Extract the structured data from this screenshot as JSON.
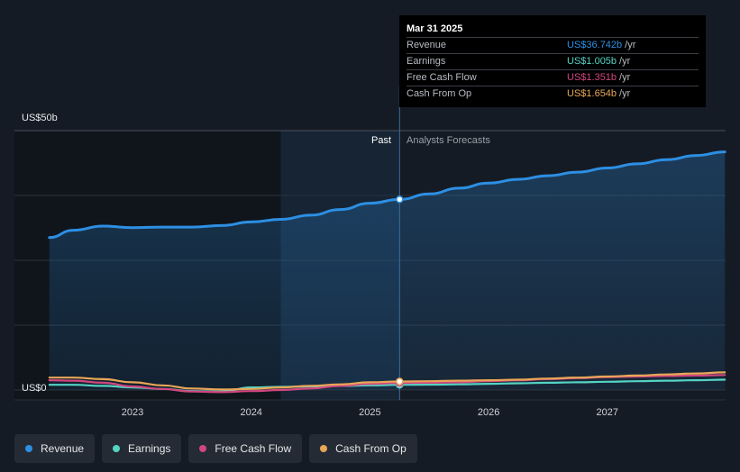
{
  "chart_data": {
    "type": "line",
    "x_labels": [
      "2023",
      "2024",
      "2025",
      "2026",
      "2027"
    ],
    "y_labels": [
      "US$50b",
      "US$0"
    ],
    "ylim": [
      0,
      50
    ],
    "past_label": "Past",
    "forecast_label": "Analysts Forecasts",
    "series": [
      {
        "name": "Revenue",
        "color": "#2d8fe3",
        "x": [
          2022.3,
          2022.5,
          2022.75,
          2023.0,
          2023.25,
          2023.5,
          2023.75,
          2024.0,
          2024.25,
          2024.5,
          2024.75,
          2025.0,
          2025.25,
          2025.5,
          2025.75,
          2026.0,
          2026.25,
          2026.5,
          2026.75,
          2027.0,
          2027.25,
          2027.5,
          2027.75,
          2027.99
        ],
        "values": [
          29.4,
          30.8,
          31.6,
          31.3,
          31.4,
          31.4,
          31.7,
          32.4,
          32.9,
          33.7,
          34.8,
          36.0,
          36.742,
          37.8,
          38.9,
          39.9,
          40.6,
          41.3,
          42.0,
          42.8,
          43.6,
          44.4,
          45.2,
          45.9
        ]
      },
      {
        "name": "Earnings",
        "color": "#55d3c3",
        "x": [
          2022.3,
          2022.5,
          2022.75,
          2023.0,
          2023.25,
          2023.5,
          2023.75,
          2024.0,
          2024.25,
          2024.5,
          2024.75,
          2025.0,
          2025.25,
          2025.5,
          2025.75,
          2026.0,
          2026.25,
          2026.5,
          2026.75,
          2027.0,
          2027.25,
          2027.5,
          2027.75,
          2027.99
        ],
        "values": [
          1.0,
          1.0,
          0.8,
          0.5,
          0.2,
          -0.2,
          -0.3,
          0.5,
          0.6,
          0.7,
          0.8,
          0.9,
          1.005,
          1.05,
          1.1,
          1.2,
          1.3,
          1.4,
          1.5,
          1.6,
          1.7,
          1.8,
          1.9,
          2.0
        ]
      },
      {
        "name": "Free Cash Flow",
        "color": "#d1467f",
        "x": [
          2022.3,
          2022.5,
          2022.75,
          2023.0,
          2023.25,
          2023.5,
          2023.75,
          2024.0,
          2024.25,
          2024.5,
          2024.75,
          2025.0,
          2025.25,
          2025.5,
          2025.75,
          2026.0,
          2026.25,
          2026.5,
          2026.75,
          2027.0,
          2027.25,
          2027.5,
          2027.75,
          2027.99
        ],
        "values": [
          1.9,
          1.8,
          1.4,
          0.7,
          0.2,
          -0.3,
          -0.4,
          -0.2,
          0.0,
          0.3,
          0.8,
          1.2,
          1.351,
          1.4,
          1.5,
          1.7,
          1.9,
          2.1,
          2.3,
          2.5,
          2.6,
          2.7,
          2.8,
          2.9
        ]
      },
      {
        "name": "Cash From Op",
        "color": "#e8a657",
        "x": [
          2022.3,
          2022.5,
          2022.75,
          2023.0,
          2023.25,
          2023.5,
          2023.75,
          2024.0,
          2024.25,
          2024.5,
          2024.75,
          2025.0,
          2025.25,
          2025.5,
          2025.75,
          2026.0,
          2026.25,
          2026.5,
          2026.75,
          2027.0,
          2027.25,
          2027.5,
          2027.75,
          2027.99
        ],
        "values": [
          2.4,
          2.4,
          2.1,
          1.5,
          0.9,
          0.3,
          0.1,
          0.2,
          0.5,
          0.8,
          1.1,
          1.5,
          1.654,
          1.7,
          1.8,
          1.9,
          2.0,
          2.2,
          2.4,
          2.6,
          2.8,
          3.0,
          3.2,
          3.4
        ]
      }
    ],
    "past_end_x": 2025.25,
    "shade_start_x": 2024.25,
    "grid": true
  },
  "tooltip": {
    "date": "Mar 31 2025",
    "rows": [
      {
        "label": "Revenue",
        "value": "US$36.742b",
        "unit": "/yr",
        "color": "#2d8fe3"
      },
      {
        "label": "Earnings",
        "value": "US$1.005b",
        "unit": "/yr",
        "color": "#55d3c3"
      },
      {
        "label": "Free Cash Flow",
        "value": "US$1.351b",
        "unit": "/yr",
        "color": "#d1467f"
      },
      {
        "label": "Cash From Op",
        "value": "US$1.654b",
        "unit": "/yr",
        "color": "#e8a657"
      }
    ]
  },
  "legend": [
    {
      "label": "Revenue",
      "color": "#2d8fe3"
    },
    {
      "label": "Earnings",
      "color": "#55d3c3"
    },
    {
      "label": "Free Cash Flow",
      "color": "#d1467f"
    },
    {
      "label": "Cash From Op",
      "color": "#e8a657"
    }
  ]
}
